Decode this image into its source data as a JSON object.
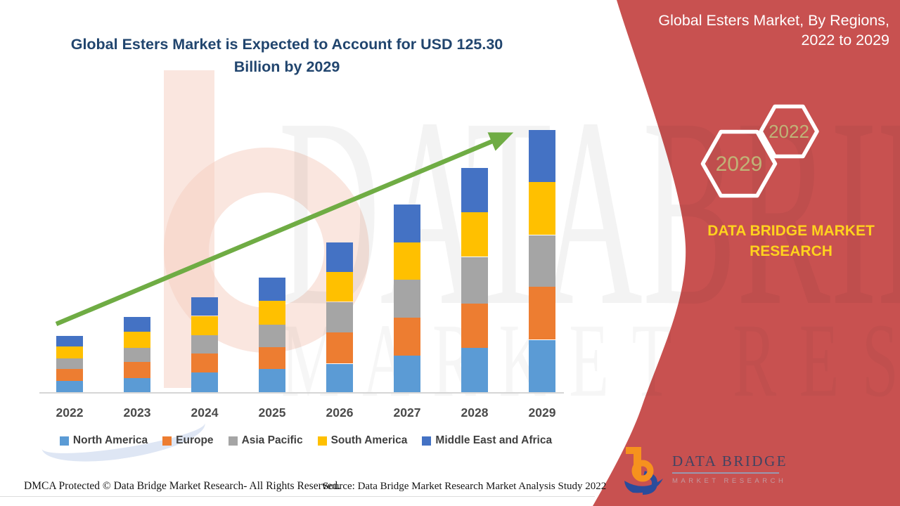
{
  "header": {
    "main_title_line1": "Global Esters Market is Expected to Account for USD 125.30",
    "main_title_line2": "Billion by 2029",
    "title_color": "#21456E"
  },
  "panel": {
    "bg_color": "#C85150",
    "title_line1": "Global Esters Market, By Regions,",
    "title_line2": "2022 to 2029",
    "hexagons": [
      {
        "label": "2029"
      },
      {
        "label": "2022"
      }
    ],
    "hex_label_color": "#C0B377",
    "brand_line1": "DATA BRIDGE MARKET",
    "brand_line2": "RESEARCH",
    "brand_color": "#FFD21E"
  },
  "watermark": {
    "row1": "DATABRIDGE",
    "row2": "MARKET RESEARCH"
  },
  "logo": {
    "name": "DATA BRIDGE",
    "subtitle": "MARKET RESEARCH",
    "orange": "#F6921E",
    "blue": "#2A4C9B"
  },
  "footer": {
    "dmca": "DMCA Protected © Data Bridge Market Research- All Rights Reserved.",
    "source": "Source: Data Bridge Market Research Market Analysis Study 2022"
  },
  "chart_data": {
    "type": "bar",
    "stacked": true,
    "title": "Global Esters Market is Expected to Account for USD 125.30 Billion by 2029",
    "unit": "USD Billion",
    "categories": [
      "2022",
      "2023",
      "2024",
      "2025",
      "2026",
      "2027",
      "2028",
      "2029"
    ],
    "series": [
      {
        "name": "North America",
        "color": "#5B9BD5",
        "values": [
          5.3,
          6.8,
          9.3,
          11.0,
          13.6,
          17.4,
          21.0,
          25.0
        ]
      },
      {
        "name": "Europe",
        "color": "#ED7D31",
        "values": [
          5.9,
          7.6,
          9.2,
          10.5,
          15.0,
          18.2,
          21.2,
          25.2
        ]
      },
      {
        "name": "Asia Pacific",
        "color": "#A5A5A5",
        "values": [
          5.0,
          6.8,
          8.7,
          10.7,
          14.5,
          18.2,
          22.4,
          24.8
        ]
      },
      {
        "name": "South America",
        "color": "#FFC000",
        "values": [
          5.5,
          7.7,
          9.2,
          11.4,
          14.3,
          17.6,
          21.2,
          25.4
        ]
      },
      {
        "name": "Middle East and Africa",
        "color": "#4472C4",
        "values": [
          5.1,
          7.0,
          9.0,
          11.0,
          14.2,
          18.1,
          21.3,
          24.9
        ]
      }
    ],
    "totals": [
      26.8,
      35.9,
      45.4,
      54.6,
      71.6,
      89.5,
      107.1,
      125.3
    ],
    "ylim": [
      0,
      130
    ],
    "grid": false,
    "legend_position": "bottom",
    "annotations": [
      "upward green trend arrow from 2022 to 2029"
    ],
    "arrow_color": "#6FAC44"
  }
}
